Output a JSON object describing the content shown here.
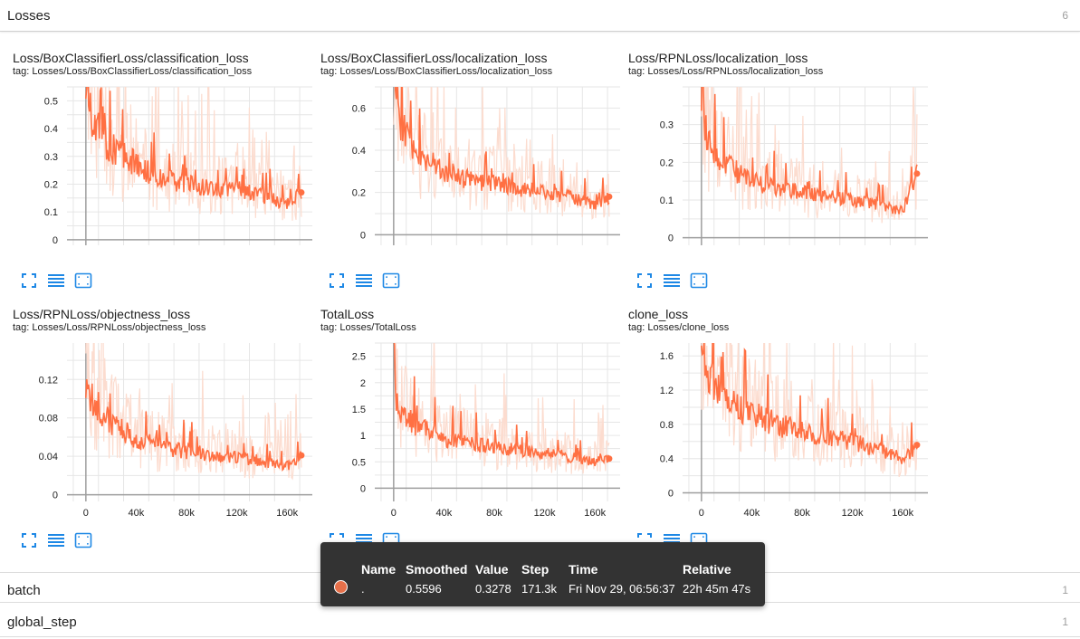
{
  "sections": [
    {
      "title": "Losses",
      "count": "6"
    },
    {
      "title": "batch",
      "count": "1"
    },
    {
      "title": "global_step",
      "count": "1"
    }
  ],
  "colors": {
    "smoothed": "#ff7043",
    "raw": "#fcdccf",
    "grid": "#e6e6e6",
    "axis": "#9e9e9e",
    "tool": "#1e88e5"
  },
  "tool_icons": [
    "fullscreen-icon",
    "data-table-icon",
    "fit-domain-icon"
  ],
  "chart_data": [
    {
      "type": "line",
      "title": "Loss/BoxClassifierLoss/classification_loss",
      "subtitle": "tag: Losses/Loss/BoxClassifierLoss/classification_loss",
      "xlim": [
        -15000,
        180000
      ],
      "ylim": [
        -0.02,
        0.55
      ],
      "yticks": [
        0,
        0.1,
        0.2,
        0.3,
        0.4,
        0.5
      ],
      "ytick_labels": [
        "0",
        "0.1",
        "0.2",
        "0.3",
        "0.4",
        "0.5"
      ],
      "xticks": [
        0,
        40000,
        80000,
        120000,
        160000
      ],
      "xtick_labels": [],
      "series": [
        {
          "x": [
            0,
            5000,
            20000,
            40000,
            60000,
            80000,
            100000,
            120000,
            140000,
            160000,
            171300
          ],
          "smoothed": [
            0.6,
            0.42,
            0.33,
            0.27,
            0.22,
            0.2,
            0.19,
            0.18,
            0.16,
            0.13,
            0.17
          ]
        }
      ]
    },
    {
      "type": "line",
      "title": "Loss/BoxClassifierLoss/localization_loss",
      "subtitle": "tag: Losses/Loss/BoxClassifierLoss/localization_loss",
      "xlim": [
        -15000,
        180000
      ],
      "ylim": [
        -0.05,
        0.7
      ],
      "yticks": [
        0,
        0.2,
        0.4,
        0.6
      ],
      "ytick_labels": [
        "0",
        "0.2",
        "0.4",
        "0.6"
      ],
      "xticks": [
        0,
        40000,
        80000,
        120000,
        160000
      ],
      "xtick_labels": [],
      "series": [
        {
          "x": [
            0,
            5000,
            20000,
            40000,
            60000,
            80000,
            100000,
            120000,
            140000,
            160000,
            171300
          ],
          "smoothed": [
            0.85,
            0.55,
            0.38,
            0.3,
            0.26,
            0.24,
            0.22,
            0.2,
            0.18,
            0.14,
            0.18
          ]
        }
      ]
    },
    {
      "type": "line",
      "title": "Loss/RPNLoss/localization_loss",
      "subtitle": "tag: Losses/Loss/RPNLoss/localization_loss",
      "xlim": [
        -15000,
        180000
      ],
      "ylim": [
        -0.02,
        0.4
      ],
      "yticks": [
        0,
        0.1,
        0.2,
        0.3
      ],
      "ytick_labels": [
        "0",
        "0.1",
        "0.2",
        "0.3"
      ],
      "xticks": [
        0,
        40000,
        80000,
        120000,
        160000
      ],
      "xtick_labels": [],
      "series": [
        {
          "x": [
            0,
            5000,
            20000,
            40000,
            60000,
            80000,
            100000,
            120000,
            140000,
            160000,
            171300
          ],
          "smoothed": [
            0.35,
            0.26,
            0.19,
            0.15,
            0.13,
            0.12,
            0.11,
            0.1,
            0.09,
            0.07,
            0.17
          ]
        }
      ]
    },
    {
      "type": "line",
      "title": "Loss/RPNLoss/objectness_loss",
      "subtitle": "tag: Losses/Loss/RPNLoss/objectness_loss",
      "xlim": [
        -15000,
        180000
      ],
      "ylim": [
        -0.007,
        0.158
      ],
      "yticks": [
        0,
        0.04,
        0.08,
        0.12
      ],
      "ytick_labels": [
        "0",
        "0.04",
        "0.08",
        "0.12"
      ],
      "xticks": [
        0,
        40000,
        80000,
        120000,
        160000
      ],
      "xtick_labels": [
        "0",
        "40k",
        "80k",
        "120k",
        "160k"
      ],
      "series": [
        {
          "x": [
            0,
            5000,
            20000,
            40000,
            60000,
            80000,
            100000,
            120000,
            140000,
            160000,
            171300
          ],
          "smoothed": [
            0.12,
            0.1,
            0.075,
            0.058,
            0.05,
            0.045,
            0.042,
            0.038,
            0.035,
            0.03,
            0.041
          ]
        }
      ]
    },
    {
      "type": "line",
      "title": "TotalLoss",
      "subtitle": "tag: Losses/TotalLoss",
      "xlim": [
        -15000,
        180000
      ],
      "ylim": [
        -0.25,
        2.75
      ],
      "yticks": [
        0,
        0.5,
        1,
        1.5,
        2,
        2.5
      ],
      "ytick_labels": [
        "0",
        "0.5",
        "1",
        "1.5",
        "2",
        "2.5"
      ],
      "xticks": [
        0,
        40000,
        80000,
        120000,
        160000
      ],
      "xtick_labels": [
        "0",
        "40k",
        "80k",
        "120k",
        "160k"
      ],
      "series": [
        {
          "x": [
            0,
            2000,
            10000,
            20000,
            40000,
            60000,
            80000,
            100000,
            120000,
            140000,
            160000,
            171300
          ],
          "smoothed": [
            2.7,
            1.6,
            1.35,
            1.15,
            0.95,
            0.85,
            0.78,
            0.72,
            0.66,
            0.6,
            0.5,
            0.5596
          ]
        }
      ]
    },
    {
      "type": "line",
      "title": "clone_loss",
      "subtitle": "tag: Losses/clone_loss",
      "xlim": [
        -15000,
        180000
      ],
      "ylim": [
        -0.1,
        1.75
      ],
      "yticks": [
        0,
        0.4,
        0.8,
        1.2,
        1.6
      ],
      "ytick_labels": [
        "0",
        "0.4",
        "0.8",
        "1.2",
        "1.6"
      ],
      "xticks": [
        0,
        40000,
        80000,
        120000,
        160000
      ],
      "xtick_labels": [
        "0",
        "40k",
        "80k",
        "120k",
        "160k"
      ],
      "series": [
        {
          "x": [
            0,
            2000,
            10000,
            20000,
            40000,
            60000,
            80000,
            100000,
            120000,
            140000,
            160000,
            171300
          ],
          "smoothed": [
            1.8,
            1.5,
            1.3,
            1.1,
            0.92,
            0.8,
            0.72,
            0.66,
            0.6,
            0.5,
            0.4,
            0.5596
          ]
        }
      ]
    }
  ],
  "tooltip": {
    "headers": [
      "Name",
      "Smoothed",
      "Value",
      "Step",
      "Time",
      "Relative"
    ],
    "row": {
      "name": ".",
      "smoothed": "0.5596",
      "value": "0.3278",
      "step": "171.3k",
      "time": "Fri Nov 29, 06:56:37",
      "relative": "22h 45m 47s"
    },
    "swatch_color": "#e6704a"
  }
}
